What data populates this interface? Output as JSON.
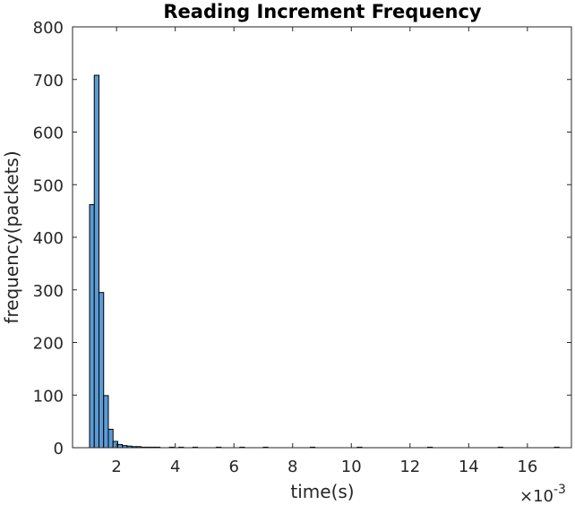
{
  "chart_data": {
    "type": "bar",
    "title": "Reading Increment Frequency",
    "xlabel": "time(s)",
    "ylabel": "frequency(packets)",
    "x_exponent_label": "×10",
    "x_exponent_power": "-3",
    "x_scale_factor": 0.001,
    "xlim": [
      0.5,
      17.5
    ],
    "ylim": [
      0,
      800
    ],
    "xticks": [
      2,
      4,
      6,
      8,
      10,
      12,
      14,
      16
    ],
    "yticks": [
      0,
      100,
      200,
      300,
      400,
      500,
      600,
      700,
      800
    ],
    "grid": false,
    "bar_color": "#5b9bd5",
    "bin_width": 0.16,
    "bins": [
      {
        "x": 1.08,
        "count": 462
      },
      {
        "x": 1.24,
        "count": 708
      },
      {
        "x": 1.4,
        "count": 295
      },
      {
        "x": 1.56,
        "count": 99
      },
      {
        "x": 1.72,
        "count": 35
      },
      {
        "x": 1.88,
        "count": 12
      },
      {
        "x": 2.04,
        "count": 6
      },
      {
        "x": 2.2,
        "count": 4
      },
      {
        "x": 2.36,
        "count": 3
      },
      {
        "x": 2.52,
        "count": 2
      },
      {
        "x": 2.68,
        "count": 2
      },
      {
        "x": 2.84,
        "count": 1
      },
      {
        "x": 3.0,
        "count": 1
      },
      {
        "x": 3.16,
        "count": 1
      },
      {
        "x": 3.32,
        "count": 1
      },
      {
        "x": 3.8,
        "count": 1
      },
      {
        "x": 4.12,
        "count": 1
      },
      {
        "x": 4.6,
        "count": 1
      },
      {
        "x": 5.4,
        "count": 1
      },
      {
        "x": 6.2,
        "count": 1
      },
      {
        "x": 7.0,
        "count": 1
      },
      {
        "x": 8.6,
        "count": 1
      },
      {
        "x": 10.2,
        "count": 1
      },
      {
        "x": 12.6,
        "count": 1
      },
      {
        "x": 15.0,
        "count": 1
      },
      {
        "x": 16.92,
        "count": 1
      }
    ]
  }
}
